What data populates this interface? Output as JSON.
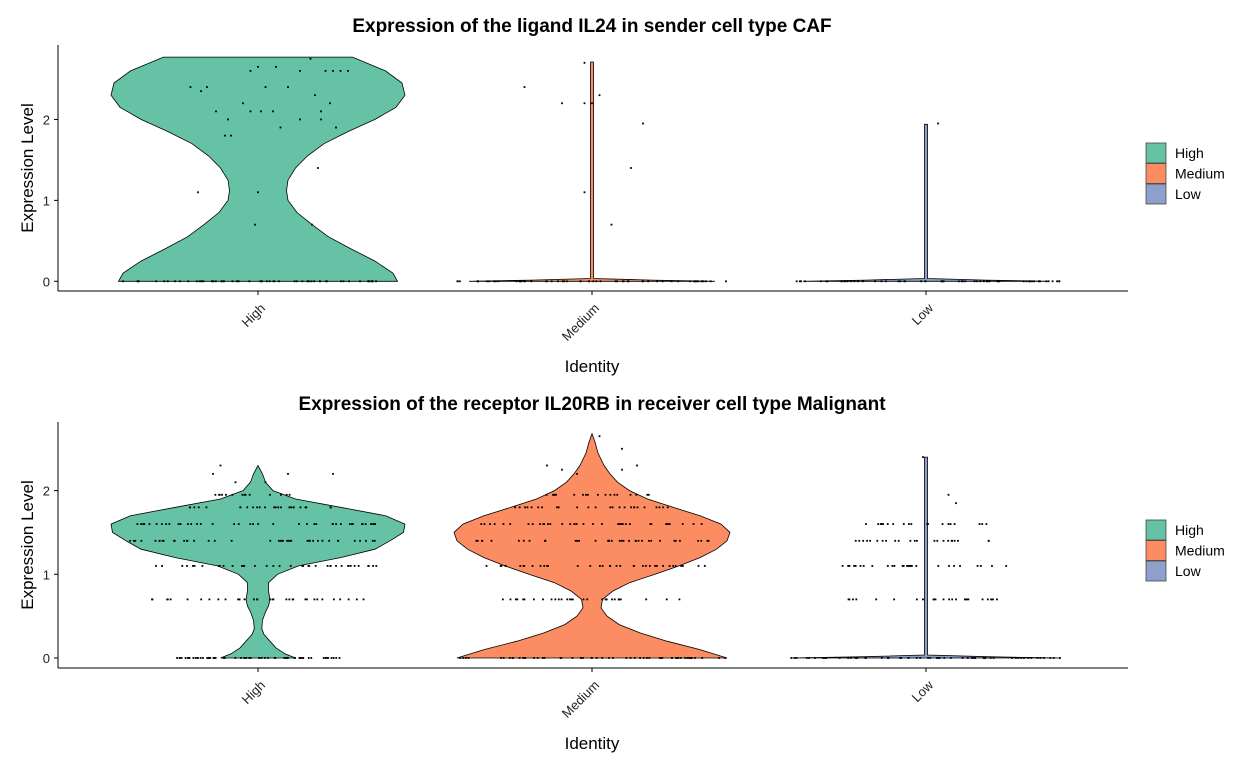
{
  "colors": {
    "High": "#66C2A5",
    "Medium": "#FC8D62",
    "Low": "#8DA0CB"
  },
  "legend": {
    "placement": "right",
    "entries": [
      "High",
      "Medium",
      "Low"
    ]
  },
  "chart_data": [
    {
      "type": "violin",
      "title": "Expression of the ligand IL24 in sender cell type CAF",
      "xlabel": "Identity",
      "ylabel": "Expression Level",
      "categories": [
        "High",
        "Medium",
        "Low"
      ],
      "yticks": [
        0,
        1,
        2
      ],
      "ylim": [
        -0.12,
        2.92
      ],
      "grid": false,
      "violins": [
        {
          "category": "High",
          "max": 2.77,
          "profile": [
            [
              0,
              0.93
            ],
            [
              0.1,
              0.9
            ],
            [
              0.25,
              0.78
            ],
            [
              0.4,
              0.62
            ],
            [
              0.55,
              0.47
            ],
            [
              0.7,
              0.36
            ],
            [
              0.85,
              0.26
            ],
            [
              1.0,
              0.2
            ],
            [
              1.12,
              0.19
            ],
            [
              1.25,
              0.2
            ],
            [
              1.4,
              0.25
            ],
            [
              1.55,
              0.33
            ],
            [
              1.7,
              0.44
            ],
            [
              1.85,
              0.6
            ],
            [
              2.0,
              0.78
            ],
            [
              2.15,
              0.92
            ],
            [
              2.3,
              0.98
            ],
            [
              2.45,
              0.96
            ],
            [
              2.6,
              0.85
            ],
            [
              2.77,
              0.63
            ]
          ]
        },
        {
          "category": "Medium",
          "max": 2.71,
          "profile": [
            [
              0,
              0.82
            ],
            [
              0.015,
              0.4
            ],
            [
              0.035,
              0.01
            ],
            [
              2.71,
              0.01
            ]
          ]
        },
        {
          "category": "Low",
          "max": 1.94,
          "profile": [
            [
              0,
              0.82
            ],
            [
              0.015,
              0.4
            ],
            [
              0.035,
              0.01
            ],
            [
              1.94,
              0.01
            ]
          ]
        }
      ],
      "points": {
        "High": [
          [
            -0.45,
            2.4
          ],
          [
            -0.38,
            2.35
          ],
          [
            -0.34,
            2.4
          ],
          [
            -0.4,
            1.1
          ],
          [
            -0.28,
            2.1
          ],
          [
            -0.22,
            1.8
          ],
          [
            -0.18,
            1.8
          ],
          [
            -0.2,
            2.0
          ],
          [
            -0.1,
            2.2
          ],
          [
            -0.05,
            2.6
          ],
          [
            -0.05,
            2.1
          ],
          [
            0.0,
            2.65
          ],
          [
            -0.02,
            0.7
          ],
          [
            0.0,
            1.1
          ],
          [
            0.02,
            2.1
          ],
          [
            0.1,
            2.1
          ],
          [
            0.05,
            2.4
          ],
          [
            0.12,
            2.65
          ],
          [
            0.15,
            1.9
          ],
          [
            0.2,
            2.4
          ],
          [
            0.28,
            2.0
          ],
          [
            0.35,
            2.75
          ],
          [
            0.28,
            2.6
          ],
          [
            0.38,
            2.3
          ],
          [
            0.42,
            2.1
          ],
          [
            0.42,
            2.0
          ],
          [
            0.45,
            2.6
          ],
          [
            0.5,
            2.6
          ],
          [
            0.36,
            0.7
          ],
          [
            0.4,
            1.4
          ],
          [
            0.48,
            2.2
          ],
          [
            0.52,
            1.9
          ],
          [
            0.55,
            2.6
          ],
          [
            0.6,
            2.6
          ]
        ],
        "Medium": [
          [
            -0.45,
            2.4
          ],
          [
            -0.2,
            2.2
          ],
          [
            -0.05,
            2.7
          ],
          [
            -0.05,
            1.1
          ],
          [
            -0.05,
            2.2
          ],
          [
            0.0,
            2.2
          ],
          [
            0.05,
            2.3
          ],
          [
            0.13,
            0.7
          ],
          [
            0.26,
            1.4
          ],
          [
            0.34,
            1.95
          ]
        ],
        "Low": [
          [
            0.08,
            1.95
          ]
        ]
      },
      "zero_points": true
    },
    {
      "type": "violin",
      "title": "Expression of the receptor IL20RB in receiver cell type Malignant",
      "xlabel": "Identity",
      "ylabel": "Expression Level",
      "categories": [
        "High",
        "Medium",
        "Low"
      ],
      "yticks": [
        0,
        1,
        2
      ],
      "ylim": [
        -0.12,
        2.82
      ],
      "grid": false,
      "violins": [
        {
          "category": "High",
          "max": 2.3,
          "profile": [
            [
              0,
              0.25
            ],
            [
              0.05,
              0.18
            ],
            [
              0.12,
              0.12
            ],
            [
              0.2,
              0.08
            ],
            [
              0.28,
              0.04
            ],
            [
              0.35,
              0.025
            ],
            [
              0.45,
              0.03
            ],
            [
              0.55,
              0.05
            ],
            [
              0.62,
              0.07
            ],
            [
              0.7,
              0.08
            ],
            [
              0.8,
              0.07
            ],
            [
              0.9,
              0.07
            ],
            [
              1.0,
              0.13
            ],
            [
              1.1,
              0.27
            ],
            [
              1.2,
              0.55
            ],
            [
              1.3,
              0.78
            ],
            [
              1.4,
              0.88
            ],
            [
              1.5,
              0.97
            ],
            [
              1.6,
              0.98
            ],
            [
              1.7,
              0.85
            ],
            [
              1.8,
              0.55
            ],
            [
              1.9,
              0.25
            ],
            [
              2.0,
              0.1
            ],
            [
              2.1,
              0.05
            ],
            [
              2.2,
              0.03
            ],
            [
              2.3,
              0.0
            ]
          ]
        },
        {
          "category": "Medium",
          "max": 2.68,
          "profile": [
            [
              0,
              0.9
            ],
            [
              0.1,
              0.72
            ],
            [
              0.2,
              0.5
            ],
            [
              0.3,
              0.32
            ],
            [
              0.4,
              0.18
            ],
            [
              0.5,
              0.1
            ],
            [
              0.6,
              0.06
            ],
            [
              0.7,
              0.07
            ],
            [
              0.8,
              0.14
            ],
            [
              0.9,
              0.25
            ],
            [
              1.0,
              0.42
            ],
            [
              1.1,
              0.58
            ],
            [
              1.2,
              0.72
            ],
            [
              1.3,
              0.83
            ],
            [
              1.4,
              0.9
            ],
            [
              1.5,
              0.92
            ],
            [
              1.6,
              0.86
            ],
            [
              1.7,
              0.72
            ],
            [
              1.8,
              0.54
            ],
            [
              1.9,
              0.37
            ],
            [
              2.0,
              0.25
            ],
            [
              2.1,
              0.17
            ],
            [
              2.2,
              0.12
            ],
            [
              2.3,
              0.08
            ],
            [
              2.45,
              0.04
            ],
            [
              2.58,
              0.02
            ],
            [
              2.68,
              0.0
            ]
          ]
        },
        {
          "category": "Low",
          "max": 2.4,
          "profile": [
            [
              0,
              0.9
            ],
            [
              0.015,
              0.4
            ],
            [
              0.035,
              0.01
            ],
            [
              2.4,
              0.01
            ]
          ]
        }
      ],
      "points": {
        "Medium": [
          [
            -0.3,
            2.3
          ],
          [
            -0.2,
            2.25
          ],
          [
            -0.1,
            2.2
          ],
          [
            0.05,
            2.65
          ],
          [
            0.2,
            2.5
          ],
          [
            0.3,
            2.3
          ],
          [
            0.2,
            2.25
          ]
        ],
        "High": [
          [
            -0.25,
            2.3
          ],
          [
            -0.3,
            2.2
          ],
          [
            0.2,
            2.2
          ],
          [
            0.5,
            2.2
          ],
          [
            -0.15,
            2.1
          ],
          [
            0.05,
            2.1
          ]
        ],
        "Low": [
          [
            -0.02,
            2.4
          ],
          [
            0.15,
            1.95
          ],
          [
            0.2,
            1.85
          ]
        ]
      },
      "bands": {
        "High": [
          [
            0,
            0.8
          ],
          [
            0.7,
            0.75
          ],
          [
            1.1,
            0.85
          ],
          [
            1.4,
            0.9
          ],
          [
            1.6,
            0.9
          ],
          [
            1.8,
            0.55
          ],
          [
            1.95,
            0.3
          ]
        ],
        "Medium": [
          [
            0,
            0.9
          ],
          [
            0.7,
            0.7
          ],
          [
            1.1,
            0.8
          ],
          [
            1.4,
            0.85
          ],
          [
            1.6,
            0.8
          ],
          [
            1.8,
            0.55
          ],
          [
            1.95,
            0.4
          ]
        ],
        "Low": [
          [
            0,
            0.82
          ],
          [
            0.7,
            0.55
          ],
          [
            1.1,
            0.6
          ],
          [
            1.4,
            0.5
          ],
          [
            1.6,
            0.45
          ]
        ]
      }
    }
  ]
}
